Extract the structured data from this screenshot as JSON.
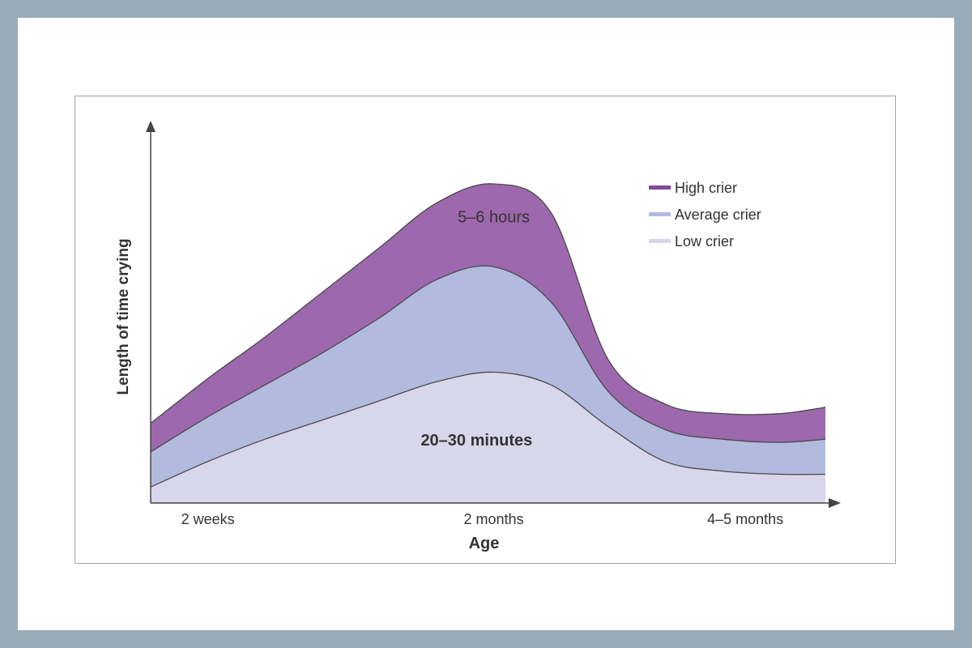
{
  "chart_data": {
    "type": "area",
    "xlabel": "Age",
    "ylabel": "Length of time crying",
    "x_tick_labels": [
      {
        "label": "2 weeks",
        "x": 0.5
      },
      {
        "label": "2 months",
        "x": 3
      },
      {
        "label": "4–5 months",
        "x": 5.2
      }
    ],
    "xlim": [
      0,
      5.9
    ],
    "ylim": [
      0,
      1
    ],
    "x": [
      0,
      0.5,
      1,
      1.5,
      2,
      2.5,
      3,
      3.5,
      4,
      4.5,
      5,
      5.5,
      5.9
    ],
    "series": [
      {
        "name": "Low crier",
        "color": "#d8d6eb",
        "values": [
          0.05,
          0.13,
          0.2,
          0.26,
          0.32,
          0.38,
          0.41,
          0.37,
          0.24,
          0.13,
          0.1,
          0.09,
          0.09
        ]
      },
      {
        "name": "Average crier",
        "color": "#b2bade",
        "values": [
          0.16,
          0.27,
          0.37,
          0.47,
          0.58,
          0.7,
          0.74,
          0.63,
          0.35,
          0.23,
          0.2,
          0.19,
          0.2
        ]
      },
      {
        "name": "High crier",
        "color": "#9d68ad",
        "values": [
          0.25,
          0.39,
          0.52,
          0.66,
          0.8,
          0.94,
          1.0,
          0.91,
          0.45,
          0.31,
          0.28,
          0.28,
          0.3
        ]
      }
    ],
    "annotations": [
      {
        "text": "5–6 hours",
        "x": 3.0,
        "y": 0.88
      },
      {
        "text": "20–30 minutes",
        "x": 2.85,
        "y": 0.18
      }
    ],
    "legend": {
      "position": "top-right",
      "items": [
        "High crier",
        "Average crier",
        "Low crier"
      ]
    },
    "grid": false
  }
}
